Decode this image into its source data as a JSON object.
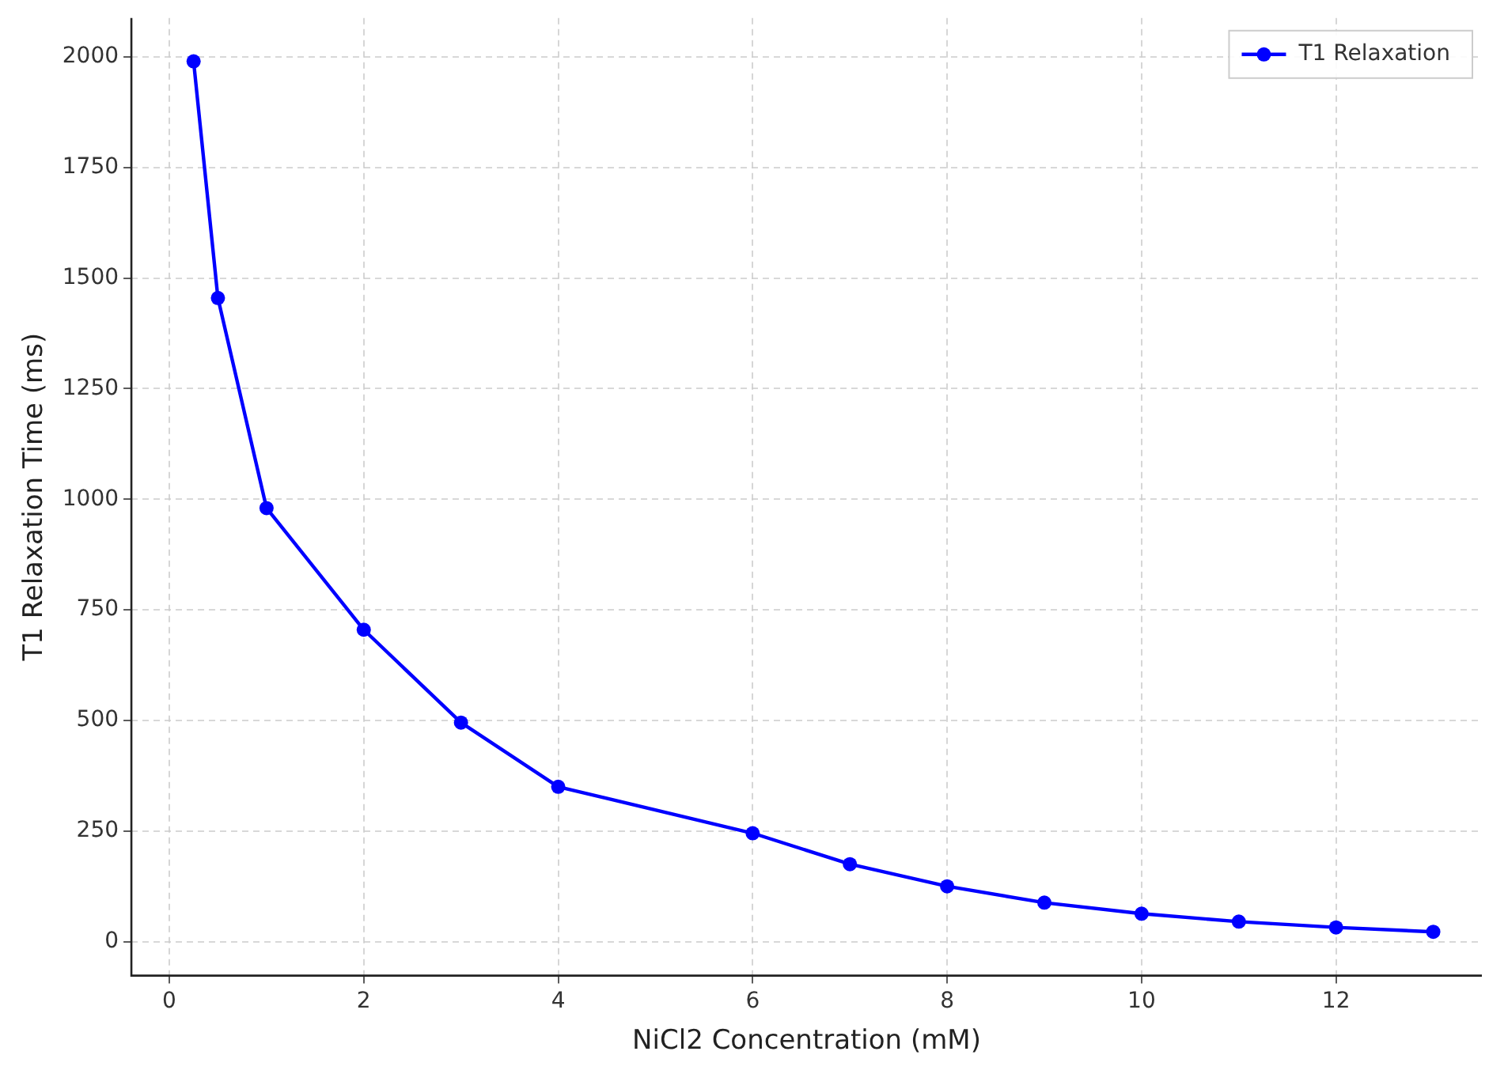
{
  "chart_data": {
    "type": "line",
    "xlabel": "NiCl2 Concentration (mM)",
    "ylabel": "T1 Relaxation Time (ms)",
    "x": [
      0.25,
      0.5,
      1,
      2,
      3,
      4,
      6,
      7,
      8,
      9,
      10,
      11,
      12,
      13
    ],
    "series": [
      {
        "name": "T1 Relaxation",
        "color": "#0000ff",
        "values": [
          1990,
          1455,
          980,
          705,
          495,
          350,
          245,
          175,
          125,
          88,
          63,
          45,
          32,
          22
        ]
      }
    ],
    "xlim": [
      -0.39,
      13.5
    ],
    "xticks": [
      0,
      2,
      4,
      6,
      8,
      10,
      12
    ],
    "ylim": [
      -77,
      2088
    ],
    "yticks": [
      0,
      250,
      500,
      750,
      1000,
      1250,
      1500,
      1750,
      2000
    ],
    "grid": true,
    "legend": "top right",
    "marker": "circle",
    "line_style": "solid"
  }
}
